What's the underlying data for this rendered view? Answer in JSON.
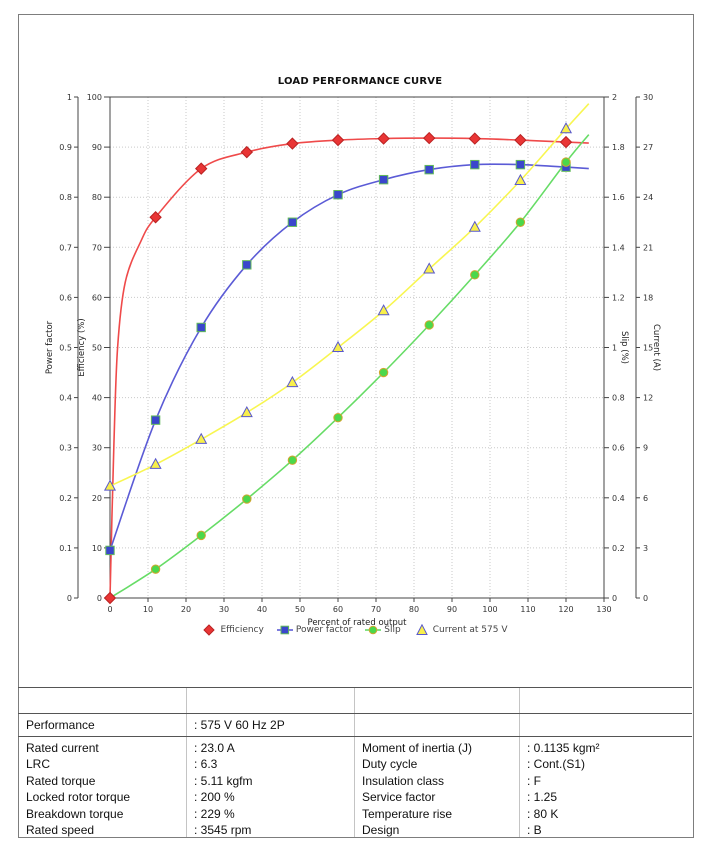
{
  "chart_data": {
    "type": "line",
    "title": "LOAD PERFORMANCE CURVE",
    "xlabel": "Percent of rated output",
    "x_axis": {
      "min": 0,
      "max": 130,
      "step": 10
    },
    "x": [
      0,
      12,
      24,
      36,
      48,
      60,
      72,
      84,
      96,
      108,
      120
    ],
    "axes": {
      "power_factor": {
        "label": "Power factor",
        "min": 0,
        "max": 1,
        "step": 0.1,
        "side": "left"
      },
      "efficiency": {
        "label": "Efficiency (%)",
        "min": 0,
        "max": 100,
        "step": 10,
        "side": "left"
      },
      "slip": {
        "label": "Slip (%)",
        "min": 0,
        "max": 2,
        "step": 0.2,
        "side": "right"
      },
      "current": {
        "label": "Current (A)",
        "min": 0,
        "max": 30,
        "step": 3,
        "side": "right"
      }
    },
    "grid": true,
    "legend_position": "bottom",
    "series": [
      {
        "name": "Efficiency",
        "axis": "efficiency",
        "marker": "diamond",
        "line_color": "#ef4a4a",
        "fill": "#e93535",
        "edge": "#b92222",
        "legend_line": false,
        "values": [
          0,
          76,
          85.7,
          89,
          90.7,
          91.4,
          91.7,
          91.8,
          91.7,
          91.4,
          91
        ],
        "curve_hint": [
          [
            1,
            30
          ],
          [
            2,
            50
          ],
          [
            4,
            63
          ],
          [
            8,
            71
          ]
        ],
        "ext": [
          126,
          90.8
        ]
      },
      {
        "name": "Power factor",
        "axis": "power_factor",
        "marker": "square",
        "line_color": "#5b5bd6",
        "fill": "#3a46cc",
        "edge": "#63bb5a",
        "legend_line": true,
        "values": [
          0.095,
          0.355,
          0.54,
          0.665,
          0.75,
          0.805,
          0.835,
          0.855,
          0.865,
          0.865,
          0.86
        ],
        "ext": [
          126,
          0.857
        ]
      },
      {
        "name": "Slip",
        "axis": "slip",
        "marker": "circle",
        "line_color": "#66dc66",
        "fill": "#4bd84b",
        "edge": "#d2a52e",
        "legend_line": true,
        "no_first_marker": true,
        "values": [
          0,
          0.115,
          0.25,
          0.395,
          0.55,
          0.72,
          0.9,
          1.09,
          1.29,
          1.5,
          1.74
        ],
        "ext": [
          126,
          1.85
        ]
      },
      {
        "name": "Current at 575 V",
        "axis": "current",
        "marker": "triangle",
        "line_color": "#f8f651",
        "fill": "#f8ef4b",
        "edge": "#5858cc",
        "legend_line": false,
        "values": [
          6.7,
          8,
          9.5,
          11.1,
          12.9,
          15,
          17.2,
          19.7,
          22.2,
          25,
          28.1
        ],
        "ext": [
          126,
          29.6
        ]
      }
    ]
  },
  "table": {
    "performance": {
      "label": "Performance",
      "value": ": 575 V 60 Hz 2P"
    },
    "left_rows": [
      {
        "label": "Rated current",
        "value": ": 23.0 A"
      },
      {
        "label": "LRC",
        "value": ": 6.3"
      },
      {
        "label": "Rated torque",
        "value": ": 5.11 kgfm"
      },
      {
        "label": "Locked rotor torque",
        "value": ": 200 %"
      },
      {
        "label": "Breakdown torque",
        "value": ": 229 %"
      },
      {
        "label": "Rated speed",
        "value": ": 3545 rpm"
      }
    ],
    "right_rows": [
      {
        "label": "Moment of inertia (J)",
        "value": ": 0.1135 kgm²"
      },
      {
        "label": "Duty cycle",
        "value": ": Cont.(S1)"
      },
      {
        "label": "Insulation class",
        "value": ": F"
      },
      {
        "label": "Service factor",
        "value": ": 1.25"
      },
      {
        "label": "Temperature rise",
        "value": ": 80 K"
      },
      {
        "label": "Design",
        "value": ": B"
      }
    ]
  }
}
